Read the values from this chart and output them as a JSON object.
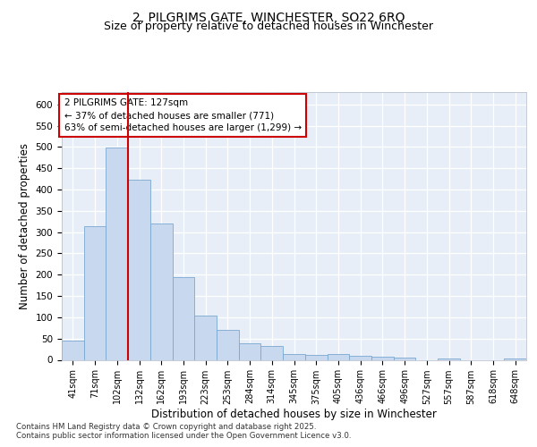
{
  "title_line1": "2, PILGRIMS GATE, WINCHESTER, SO22 6RQ",
  "title_line2": "Size of property relative to detached houses in Winchester",
  "xlabel": "Distribution of detached houses by size in Winchester",
  "ylabel": "Number of detached properties",
  "categories": [
    "41sqm",
    "71sqm",
    "102sqm",
    "132sqm",
    "162sqm",
    "193sqm",
    "223sqm",
    "253sqm",
    "284sqm",
    "314sqm",
    "345sqm",
    "375sqm",
    "405sqm",
    "436sqm",
    "466sqm",
    "496sqm",
    "527sqm",
    "557sqm",
    "587sqm",
    "618sqm",
    "648sqm"
  ],
  "values": [
    45,
    313,
    498,
    424,
    320,
    195,
    105,
    70,
    38,
    33,
    13,
    12,
    13,
    10,
    7,
    5,
    0,
    4,
    0,
    0,
    4
  ],
  "bar_color": "#c8d8ee",
  "bar_edge_color": "#7aa8d0",
  "vline_index": 2.5,
  "vline_color": "#cc0000",
  "annotation_text": "2 PILGRIMS GATE: 127sqm\n← 37% of detached houses are smaller (771)\n63% of semi-detached houses are larger (1,299) →",
  "annotation_box_color": "#cc0000",
  "background_color": "#e8eef8",
  "grid_color": "#ffffff",
  "ylim": [
    0,
    630
  ],
  "yticks": [
    0,
    50,
    100,
    150,
    200,
    250,
    300,
    350,
    400,
    450,
    500,
    550,
    600
  ],
  "footer_text": "Contains HM Land Registry data © Crown copyright and database right 2025.\nContains public sector information licensed under the Open Government Licence v3.0.",
  "title_fontsize": 10,
  "subtitle_fontsize": 9,
  "tick_fontsize": 7,
  "label_fontsize": 8.5,
  "annot_fontsize": 7.5
}
